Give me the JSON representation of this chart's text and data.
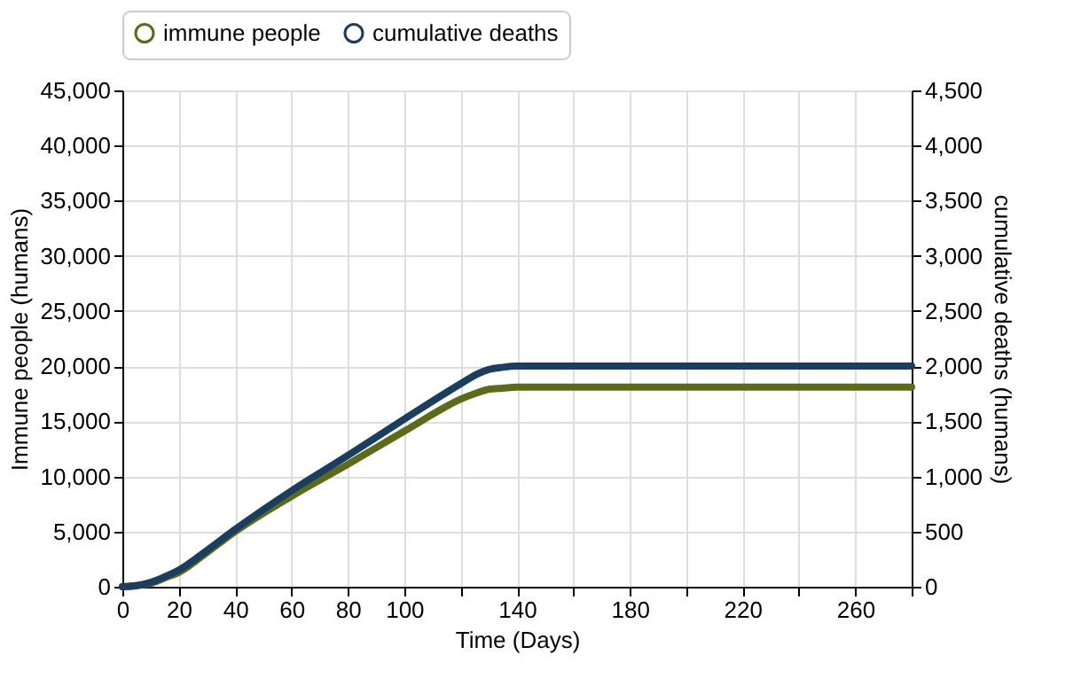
{
  "chart_data": {
    "type": "line",
    "xlabel": "Time (Days)",
    "ylabel": "Immune people (humans)",
    "y2label": "cumulative deaths (humans)",
    "xlim": [
      0,
      280
    ],
    "xticks": [
      0,
      20,
      40,
      60,
      80,
      100,
      {
        "value": 120,
        "label": null
      },
      140,
      {
        "value": 160,
        "label": null
      },
      180,
      {
        "value": 200,
        "label": null
      },
      220,
      {
        "value": 240,
        "label": null
      },
      260,
      {
        "value": 280,
        "label": null
      }
    ],
    "ylim": [
      0,
      45000
    ],
    "yticks": [
      0,
      {
        "value": 5000,
        "label": "5,000"
      },
      {
        "value": 10000,
        "label": "10,000"
      },
      {
        "value": 15000,
        "label": "15,000"
      },
      {
        "value": 20000,
        "label": "20,000"
      },
      {
        "value": 25000,
        "label": "25,000"
      },
      {
        "value": 30000,
        "label": "30,000"
      },
      {
        "value": 35000,
        "label": "35,000"
      },
      {
        "value": 40000,
        "label": "40,000"
      },
      {
        "value": 45000,
        "label": "45,000"
      }
    ],
    "y2lim": [
      0,
      4500
    ],
    "y2ticks": [
      0,
      500,
      {
        "value": 1000,
        "label": "1,000"
      },
      {
        "value": 1500,
        "label": "1,500"
      },
      {
        "value": 2000,
        "label": "2,000"
      },
      {
        "value": 2500,
        "label": "2,500"
      },
      {
        "value": 3000,
        "label": "3,000"
      },
      {
        "value": 3500,
        "label": "3,500"
      },
      {
        "value": 4000,
        "label": "4,000"
      },
      {
        "value": 4500,
        "label": "4,500"
      }
    ],
    "grid": true,
    "legend": "top",
    "marker": "none",
    "line_style": "solid",
    "series": [
      {
        "name": "immune people",
        "color": "#5b6b1b",
        "x": [
          0,
          5,
          10,
          15,
          20,
          30,
          40,
          60,
          80,
          100,
          120,
          126,
          130,
          135,
          140,
          150,
          180,
          220,
          260,
          280
        ],
        "values": [
          0,
          100,
          300,
          800,
          1300,
          3100,
          5000,
          8200,
          11100,
          14100,
          17000,
          17600,
          17900,
          18000,
          18100,
          18100,
          18100,
          18100,
          18100,
          18100
        ]
      },
      {
        "name": "cumulative deaths",
        "color": "#1b3d5e",
        "axis": "y2",
        "x": [
          0,
          5,
          10,
          15,
          20,
          30,
          40,
          60,
          80,
          100,
          120,
          126,
          130,
          135,
          140,
          150,
          180,
          220,
          260,
          280
        ],
        "values": [
          0,
          10,
          40,
          90,
          150,
          330,
          520,
          870,
          1190,
          1520,
          1840,
          1930,
          1970,
          1990,
          2000,
          2000,
          2000,
          2000,
          2000,
          2000
        ]
      }
    ]
  }
}
